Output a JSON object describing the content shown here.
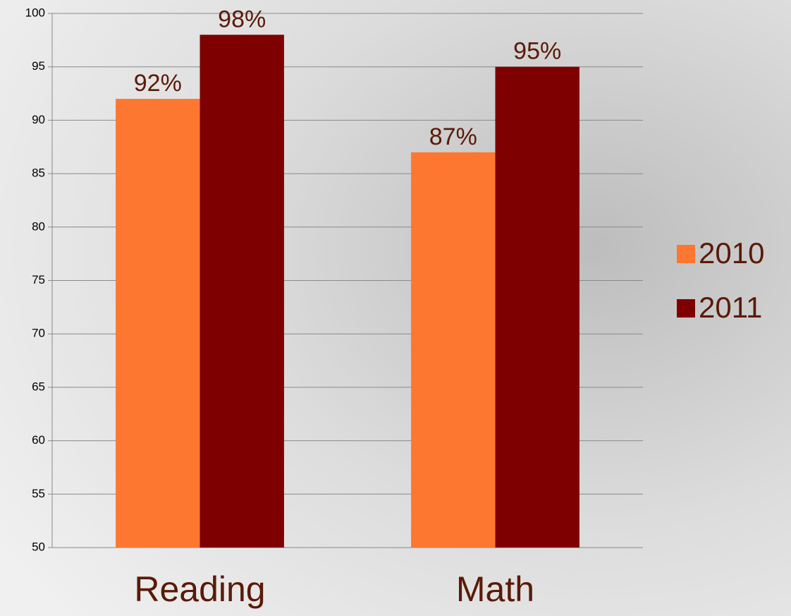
{
  "chart_data": {
    "type": "bar",
    "categories": [
      "Reading",
      "Math"
    ],
    "series": [
      {
        "name": "2010",
        "color": "#fd7731",
        "values": [
          92,
          87
        ],
        "value_labels": [
          "92%",
          "87%"
        ]
      },
      {
        "name": "2011",
        "color": "#7f0000",
        "values": [
          98,
          95
        ],
        "value_labels": [
          "98%",
          "95%"
        ]
      }
    ],
    "ylim": [
      50,
      100
    ],
    "yticks": [
      50,
      55,
      60,
      65,
      70,
      75,
      80,
      85,
      90,
      95,
      100
    ],
    "grid": true,
    "legend": "right"
  }
}
